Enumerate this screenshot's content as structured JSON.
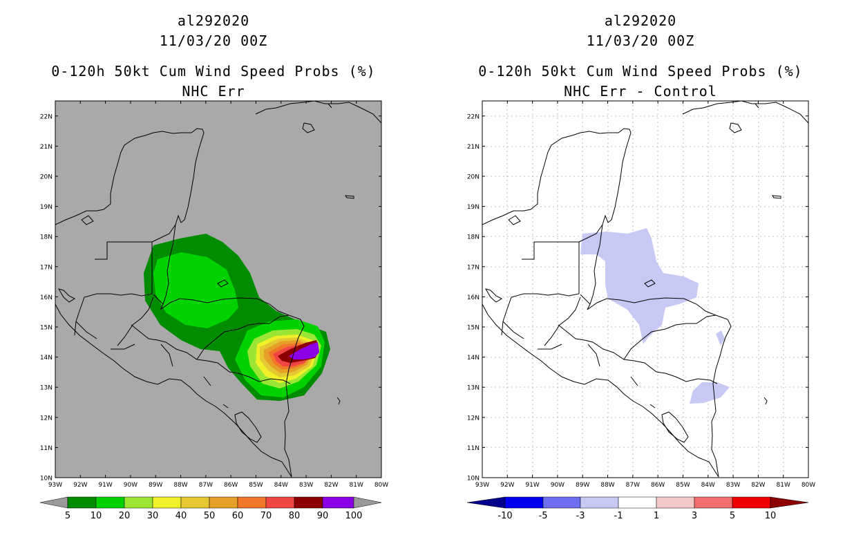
{
  "left_panel": {
    "storm_id": "al292020",
    "datetime": "11/03/20 00Z",
    "product": "0-120h 50kt Cum Wind Speed Probs (%)",
    "subtitle": "NHC Err",
    "colorbar": {
      "labels": [
        "5",
        "10",
        "20",
        "30",
        "40",
        "50",
        "60",
        "70",
        "80",
        "90",
        "100"
      ],
      "colors": [
        "#9a9a9a",
        "#008c00",
        "#00d200",
        "#9be632",
        "#f0f028",
        "#e6c832",
        "#e6a028",
        "#f07828",
        "#f04646",
        "#8c0000",
        "#8c00e6",
        "#9a9a9a"
      ]
    }
  },
  "right_panel": {
    "storm_id": "al292020",
    "datetime": "11/03/20 00Z",
    "product": "0-120h 50kt Cum Wind Speed Probs (%)",
    "subtitle": "NHC Err - Control",
    "colorbar": {
      "labels": [
        "-10",
        "-5",
        "-3",
        "-1",
        "1",
        "3",
        "5",
        "10"
      ],
      "colors": [
        "#00008c",
        "#0000f0",
        "#6e6ef0",
        "#c8c8f5",
        "#ffffff",
        "#f5c8c8",
        "#f06e6e",
        "#f00000",
        "#8c0000"
      ]
    }
  },
  "map": {
    "lat_labels": [
      "22N",
      "21N",
      "20N",
      "19N",
      "18N",
      "17N",
      "16N",
      "15N",
      "14N",
      "13N",
      "12N",
      "11N",
      "10N"
    ],
    "lon_labels": [
      "93W",
      "92W",
      "91W",
      "90W",
      "89W",
      "88W",
      "87W",
      "86W",
      "85W",
      "84W",
      "83W",
      "82W",
      "81W",
      "80W"
    ],
    "lat_range": [
      10,
      22.5
    ],
    "lon_range": [
      -93,
      -80
    ]
  }
}
